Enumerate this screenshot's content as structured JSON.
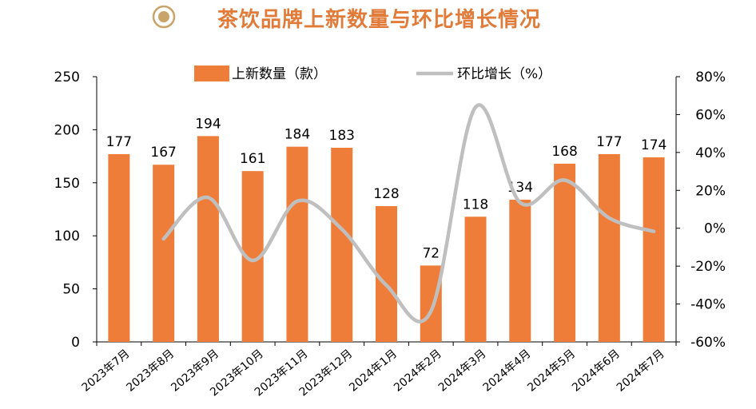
{
  "title": "茶饮品牌上新数量与环比增长情况",
  "colors": {
    "bar": "#EF7D3A",
    "line": "#BFBFBF",
    "title": "#E07B39",
    "icon": "#C9A46A"
  },
  "chart_data": {
    "type": "bar",
    "categories": [
      "2023年7月",
      "2023年8月",
      "2023年9月",
      "2023年10月",
      "2023年11月",
      "2023年12月",
      "2024年1月",
      "2024年2月",
      "2024年3月",
      "2024年4月",
      "2024年5月",
      "2024年6月",
      "2024年7月"
    ],
    "series": [
      {
        "name": "上新数量（款）",
        "type": "bar",
        "axis": "left",
        "values": [
          177,
          167,
          194,
          161,
          184,
          183,
          128,
          72,
          118,
          134,
          168,
          177,
          174
        ]
      },
      {
        "name": "环比增长（%）",
        "type": "line",
        "axis": "right",
        "values": [
          null,
          -5.6,
          16.2,
          -17.0,
          14.3,
          -0.5,
          -30.1,
          -43.8,
          63.9,
          13.6,
          25.4,
          5.4,
          -1.7
        ]
      }
    ],
    "y_left": {
      "lim": [
        0,
        250
      ],
      "ticks": [
        "0",
        "50",
        "100",
        "150",
        "200",
        "250"
      ]
    },
    "y_right": {
      "lim": [
        -60,
        80
      ],
      "ticks": [
        "-60%",
        "-40%",
        "-20%",
        "0%",
        "20%",
        "40%",
        "60%",
        "80%"
      ]
    },
    "legend": "top",
    "grid": false
  }
}
